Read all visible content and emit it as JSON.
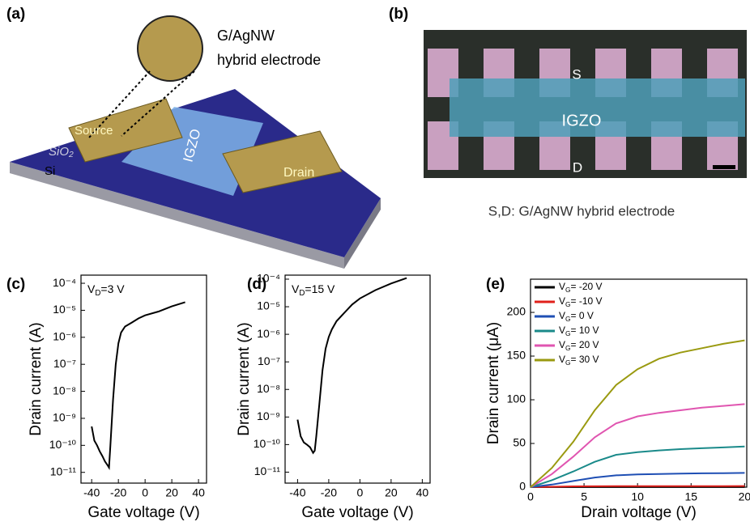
{
  "panel_a": {
    "label": "(a)",
    "callout_line1": "G/AgNW",
    "callout_line2": "hybrid electrode",
    "source": "Source",
    "channel": "IGZO",
    "drain": "Drain",
    "oxide": "SiO₂",
    "substrate": "Si"
  },
  "panel_b": {
    "label": "(b)",
    "top": "S",
    "channel": "IGZO",
    "bottom": "D",
    "caption": "S,D: G/AgNW hybrid electrode"
  },
  "chart_data": [
    {
      "type": "line",
      "panel_label": "(c)",
      "annotation": "VD=3 V",
      "x_label": "Gate voltage (V)",
      "y_label": "Drain current (A)",
      "log_y": true,
      "color": "#000000",
      "x": [
        -40,
        -38,
        -36,
        -34,
        -32,
        -30,
        -28,
        -27,
        -26,
        -24,
        -22,
        -20,
        -18,
        -15,
        -10,
        -5,
        0,
        10,
        20,
        30
      ],
      "values": [
        5e-10,
        1.5e-10,
        1e-10,
        6e-11,
        4e-11,
        2.5e-11,
        1.8e-11,
        1.5e-11,
        1e-10,
        5e-09,
        1e-07,
        6e-07,
        1.5e-06,
        2.5e-06,
        3.5e-06,
        5e-06,
        6.5e-06,
        9e-06,
        1.4e-05,
        2e-05
      ],
      "xlim": [
        -48,
        46
      ],
      "xticks": [
        -40,
        -20,
        0,
        20,
        40
      ],
      "ylim": [
        4e-12,
        0.0002
      ],
      "yticks": [
        {
          "value": 0.0001,
          "label": "10⁻⁴"
        },
        {
          "value": 1e-05,
          "label": "10⁻⁵"
        },
        {
          "value": 1e-06,
          "label": "10⁻⁶"
        },
        {
          "value": 1e-07,
          "label": "10⁻⁷"
        },
        {
          "value": 1e-08,
          "label": "10⁻⁸"
        },
        {
          "value": 1e-09,
          "label": "10⁻⁹"
        },
        {
          "value": 1e-10,
          "label": "10⁻¹⁰"
        },
        {
          "value": 1e-11,
          "label": "10⁻¹¹"
        }
      ]
    },
    {
      "type": "line",
      "panel_label": "(d)",
      "annotation": "VD=15 V",
      "x_label": "Gate voltage (V)",
      "y_label": "Drain current (A)",
      "log_y": true,
      "color": "#000000",
      "x": [
        -40,
        -38,
        -36,
        -34,
        -32,
        -30,
        -29,
        -28,
        -26,
        -24,
        -22,
        -20,
        -18,
        -15,
        -10,
        -5,
        0,
        10,
        20,
        30
      ],
      "values": [
        8e-10,
        2e-10,
        1.2e-10,
        1e-10,
        8e-11,
        5e-11,
        6e-11,
        2e-10,
        3e-09,
        5e-08,
        3e-07,
        8e-07,
        1.5e-06,
        3e-06,
        6e-06,
        1.2e-05,
        2e-05,
        4e-05,
        7e-05,
        0.00011
      ],
      "xlim": [
        -48,
        45
      ],
      "xticks": [
        -40,
        -20,
        0,
        20,
        40
      ],
      "ylim": [
        4e-12,
        0.00014
      ],
      "yticks": [
        {
          "value": 0.0001,
          "label": "10⁻⁴"
        },
        {
          "value": 1e-05,
          "label": "10⁻⁵"
        },
        {
          "value": 1e-06,
          "label": "10⁻⁶"
        },
        {
          "value": 1e-07,
          "label": "10⁻⁷"
        },
        {
          "value": 1e-08,
          "label": "10⁻⁸"
        },
        {
          "value": 1e-09,
          "label": "10⁻⁹"
        },
        {
          "value": 1e-10,
          "label": "10⁻¹⁰"
        },
        {
          "value": 1e-11,
          "label": "10⁻¹¹"
        }
      ]
    },
    {
      "type": "line",
      "panel_label": "(e)",
      "x_label": "Drain voltage (V)",
      "y_label": "Drain current (μA)",
      "log_y": false,
      "legend": "upper left",
      "x": [
        0,
        2,
        4,
        6,
        8,
        10,
        12,
        14,
        16,
        18,
        20
      ],
      "series": [
        {
          "name": "VG= -20 V",
          "color": "#000000",
          "values": [
            0,
            0.05,
            0.1,
            0.1,
            0.1,
            0.1,
            0.1,
            0.1,
            0.1,
            0.1,
            0.1
          ]
        },
        {
          "name": "VG= -10 V",
          "color": "#e0201b",
          "values": [
            0,
            0.5,
            0.9,
            1,
            1.1,
            1.1,
            1.2,
            1.2,
            1.2,
            1.2,
            1.3
          ]
        },
        {
          "name": "VG= 0 V",
          "color": "#1f4fb4",
          "values": [
            0,
            3,
            7,
            11,
            13.5,
            14.5,
            15,
            15.5,
            15.8,
            16,
            16.3
          ]
        },
        {
          "name": "VG= 10 V",
          "color": "#1a8a8a",
          "values": [
            0,
            8,
            18,
            29,
            37,
            40,
            42,
            43.5,
            44.5,
            45.5,
            46.5
          ]
        },
        {
          "name": "VG= 20 V",
          "color": "#e055b0",
          "values": [
            0,
            15,
            35,
            57,
            73,
            81,
            85,
            88,
            91,
            93,
            95
          ]
        },
        {
          "name": "VG= 30 V",
          "color": "#9a9a10",
          "values": [
            0,
            22,
            52,
            88,
            117,
            135,
            147,
            154,
            159,
            164,
            168
          ]
        }
      ],
      "xlim": [
        0,
        20.2
      ],
      "xticks": [
        0,
        5,
        10,
        15,
        20
      ],
      "ylim": [
        0,
        238
      ],
      "yticks": [
        0,
        50,
        100,
        150,
        200
      ]
    }
  ]
}
